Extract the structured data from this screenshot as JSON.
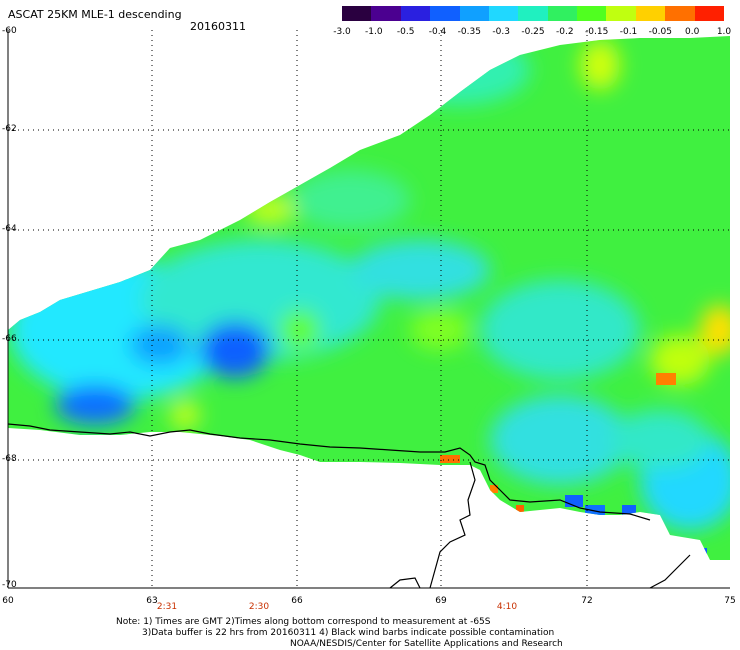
{
  "header": {
    "title": "ASCAT 25KM MLE-1 descending",
    "date": "20160311"
  },
  "colorbar": {
    "labels": [
      "-3.0",
      "-1.0",
      "-0.5",
      "-0.4",
      "-0.35",
      "-0.3",
      "-0.25",
      "-0.2",
      "-0.15",
      "-0.1",
      "-0.05",
      "0.0",
      "1.0"
    ],
    "colors": [
      "#2a0040",
      "#4b0090",
      "#2a20e0",
      "#1060ff",
      "#10a0ff",
      "#20d8ff",
      "#20f0c0",
      "#30f060",
      "#50ff20",
      "#c0ff10",
      "#ffd000",
      "#ff7000",
      "#ff2000"
    ]
  },
  "chart_data": {
    "type": "heatmap",
    "title": "ASCAT 25KM MLE-1 descending",
    "subtitle": "20160311",
    "x_ticks": [
      "60",
      "63",
      "66",
      "69",
      "72",
      "75"
    ],
    "y_ticks": [
      "-60",
      "-62",
      "-64",
      "-66",
      "-68",
      "-70"
    ],
    "xlim": [
      60,
      75
    ],
    "ylim": [
      -70,
      -60
    ],
    "grid": true,
    "time_labels": [
      {
        "lon": 63.2,
        "text": "2:31"
      },
      {
        "lon": 65.2,
        "text": "2:30"
      },
      {
        "lon": 70.3,
        "text": "4:10"
      }
    ]
  },
  "footer": {
    "note_line1": "Note: 1) Times are GMT 2)Times along bottom correspond to measurement at -65S",
    "note_line2": "3)Data buffer is 22 hrs from 20160311 4) Black wind barbs indicate possible contamination",
    "note_line3": "NOAA/NESDIS/Center for Satellite Applications and Research"
  }
}
